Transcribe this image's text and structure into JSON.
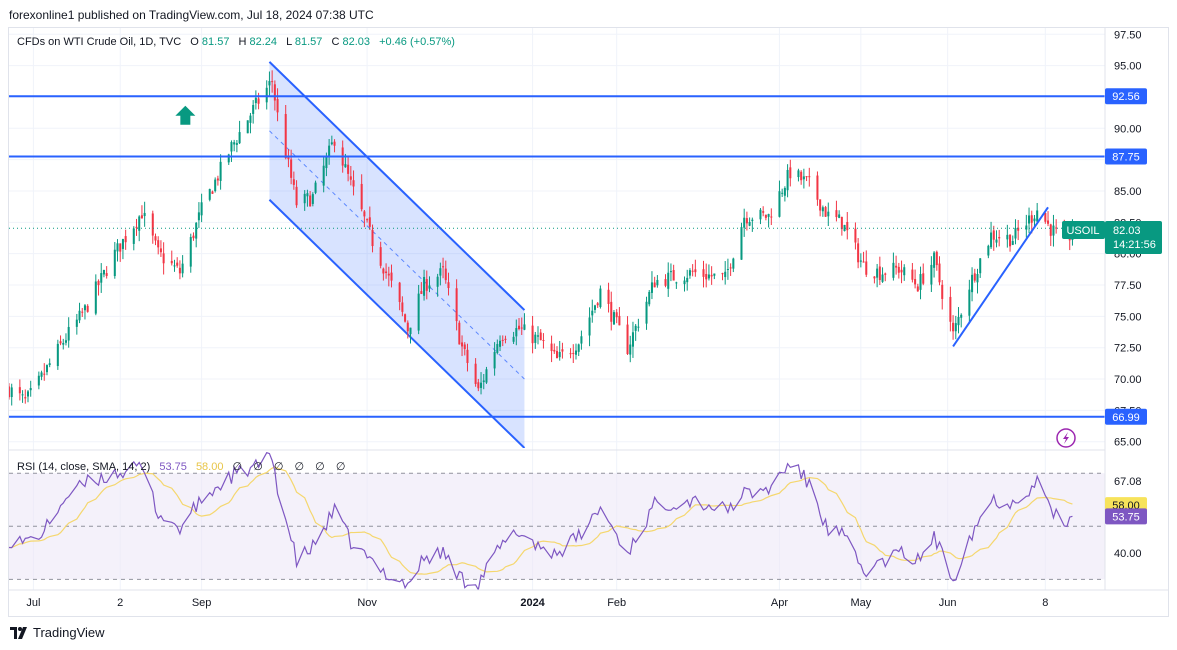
{
  "header": {
    "published": "forexonline1 published on TradingView.com, Jul 18, 2024 07:38 UTC"
  },
  "legend": {
    "symbol": "CFDs on WTI Crude Oil, 1D, TVC",
    "o_label": "O",
    "o_value": "81.57",
    "h_label": "H",
    "h_value": "82.24",
    "l_label": "L",
    "l_value": "81.57",
    "c_label": "C",
    "c_value": "82.03",
    "change": "+0.46 (+0.57%)"
  },
  "price_badge": {
    "symbol": "USOIL",
    "price": "82.03",
    "countdown": "14:21:56"
  },
  "rsi_legend": {
    "label": "RSI (14, close, SMA, 14, 2)",
    "value": "53.75",
    "sma_value": "58.00",
    "na_symbols": [
      "∅",
      "∅",
      "∅",
      "∅",
      "∅",
      "∅"
    ]
  },
  "footer": {
    "brand": "TradingView"
  },
  "colors": {
    "up": "#089981",
    "down": "#f23645",
    "line": "#2962ff",
    "rsi": "#7e57c2",
    "rsi_sma": "#f5d76e",
    "rsi_band": "#ede7f6",
    "badge_sma": "#f7e35b",
    "axis_text": "#131722"
  },
  "chart_data": {
    "type": "candlestick",
    "title": "CFDs on WTI Crude Oil, 1D, TVC",
    "ylim": [
      64.5,
      98.0
    ],
    "y_ticks": [
      "65.00",
      "67.50",
      "70.00",
      "72.50",
      "75.00",
      "77.50",
      "80.00",
      "82.50",
      "85.00",
      "87.50",
      "90.00",
      "92.50",
      "95.00",
      "97.50"
    ],
    "x_ticks": [
      {
        "label": "Jul",
        "date": "2023-07-01"
      },
      {
        "label": "2",
        "date": "2023-08-02"
      },
      {
        "label": "Sep",
        "date": "2023-09-01"
      },
      {
        "label": "Nov",
        "date": "2023-11-01"
      },
      {
        "label": "2024",
        "date": "2024-01-01",
        "bold": true
      },
      {
        "label": "Feb",
        "date": "2024-02-01"
      },
      {
        "label": "Apr",
        "date": "2024-04-01"
      },
      {
        "label": "May",
        "date": "2024-05-01"
      },
      {
        "label": "Jun",
        "date": "2024-06-02"
      },
      {
        "label": "8",
        "date": "2024-07-08"
      }
    ],
    "x_range": [
      "2023-06-22",
      "2024-07-30"
    ],
    "last_bar": "2024-07-18",
    "last_price": 82.03,
    "price_path": [
      [
        "2023-06-22",
        69.2
      ],
      [
        "2023-06-28",
        68.2
      ],
      [
        "2023-07-01",
        69.0
      ],
      [
        "2023-07-12",
        73.0
      ],
      [
        "2023-07-20",
        75.5
      ],
      [
        "2023-07-31",
        80.0
      ],
      [
        "2023-08-10",
        83.3
      ],
      [
        "2023-08-16",
        80.0
      ],
      [
        "2023-08-24",
        78.5
      ],
      [
        "2023-09-01",
        83.5
      ],
      [
        "2023-09-12",
        88.5
      ],
      [
        "2023-09-20",
        91.5
      ],
      [
        "2023-09-27",
        93.8
      ],
      [
        "2023-09-29",
        91.0
      ],
      [
        "2023-10-06",
        84.0
      ],
      [
        "2023-10-12",
        84.5
      ],
      [
        "2023-10-20",
        89.2
      ],
      [
        "2023-10-26",
        85.5
      ],
      [
        "2023-11-03",
        81.0
      ],
      [
        "2023-11-10",
        77.5
      ],
      [
        "2023-11-16",
        74.0
      ],
      [
        "2023-11-22",
        77.5
      ],
      [
        "2023-11-29",
        78.5
      ],
      [
        "2023-12-06",
        72.5
      ],
      [
        "2023-12-12",
        69.0
      ],
      [
        "2023-12-20",
        73.5
      ],
      [
        "2023-12-27",
        74.0
      ],
      [
        "2024-01-04",
        73.0
      ],
      [
        "2024-01-10",
        71.5
      ],
      [
        "2024-01-18",
        73.0
      ],
      [
        "2024-01-26",
        77.0
      ],
      [
        "2024-02-05",
        72.5
      ],
      [
        "2024-02-15",
        77.8
      ],
      [
        "2024-02-29",
        78.5
      ],
      [
        "2024-03-12",
        78.0
      ],
      [
        "2024-03-19",
        83.0
      ],
      [
        "2024-03-28",
        83.0
      ],
      [
        "2024-04-05",
        86.5
      ],
      [
        "2024-04-12",
        85.5
      ],
      [
        "2024-04-19",
        83.0
      ],
      [
        "2024-04-24",
        82.5
      ],
      [
        "2024-05-02",
        79.0
      ],
      [
        "2024-05-08",
        78.5
      ],
      [
        "2024-05-15",
        78.8
      ],
      [
        "2024-05-22",
        77.5
      ],
      [
        "2024-05-28",
        79.5
      ],
      [
        "2024-06-04",
        73.5
      ],
      [
        "2024-06-10",
        77.5
      ],
      [
        "2024-06-18",
        81.5
      ],
      [
        "2024-06-26",
        81.2
      ],
      [
        "2024-07-05",
        83.5
      ],
      [
        "2024-07-10",
        82.0
      ],
      [
        "2024-07-16",
        80.8
      ],
      [
        "2024-07-18",
        82.03
      ]
    ],
    "horizontal_levels": [
      {
        "price": 92.56,
        "label": "92.56"
      },
      {
        "price": 87.75,
        "label": "87.75"
      },
      {
        "price": 66.99,
        "label": "66.99"
      }
    ],
    "channel": {
      "upper": [
        [
          "2023-09-26",
          95.3
        ],
        [
          "2023-12-29",
          75.5
        ]
      ],
      "lower": [
        [
          "2023-09-26",
          84.3
        ],
        [
          "2023-12-29",
          64.5
        ]
      ],
      "midline": [
        [
          "2023-09-26",
          89.8
        ],
        [
          "2023-12-29",
          70.0
        ]
      ]
    },
    "trendline": [
      [
        "2024-06-04",
        72.6
      ],
      [
        "2024-07-09",
        83.7
      ]
    ],
    "annotations": [
      {
        "type": "up-arrow",
        "date": "2023-08-26",
        "price": 91.0
      }
    ],
    "rsi": {
      "ylim": [
        26.0,
        78.0
      ],
      "y_ticks": [
        "40.00",
        "57.09",
        "67.08"
      ],
      "bands": [
        70,
        50,
        30
      ],
      "last_value": 53.75,
      "sma_last": 58.0,
      "path": [
        [
          "2023-06-22",
          45.0
        ],
        [
          "2023-06-28",
          44.0
        ],
        [
          "2023-07-05",
          48.0
        ],
        [
          "2023-07-12",
          60.0
        ],
        [
          "2023-07-20",
          66.0
        ],
        [
          "2023-07-31",
          70.0
        ],
        [
          "2023-08-10",
          72.0
        ],
        [
          "2023-08-16",
          55.0
        ],
        [
          "2023-08-24",
          49.0
        ],
        [
          "2023-09-01",
          60.0
        ],
        [
          "2023-09-12",
          69.0
        ],
        [
          "2023-09-20",
          72.0
        ],
        [
          "2023-09-27",
          76.0
        ],
        [
          "2023-09-29",
          65.0
        ],
        [
          "2023-10-06",
          37.0
        ],
        [
          "2023-10-12",
          42.0
        ],
        [
          "2023-10-20",
          56.0
        ],
        [
          "2023-10-26",
          44.0
        ],
        [
          "2023-11-03",
          36.0
        ],
        [
          "2023-11-10",
          31.0
        ],
        [
          "2023-11-16",
          28.0
        ],
        [
          "2023-11-22",
          38.0
        ],
        [
          "2023-11-29",
          40.0
        ],
        [
          "2023-12-06",
          30.0
        ],
        [
          "2023-12-12",
          29.0
        ],
        [
          "2023-12-20",
          42.0
        ],
        [
          "2023-12-27",
          48.0
        ],
        [
          "2024-01-04",
          42.0
        ],
        [
          "2024-01-10",
          40.0
        ],
        [
          "2024-01-18",
          46.0
        ],
        [
          "2024-01-26",
          57.0
        ],
        [
          "2024-02-05",
          40.0
        ],
        [
          "2024-02-15",
          58.0
        ],
        [
          "2024-02-29",
          60.0
        ],
        [
          "2024-03-12",
          56.0
        ],
        [
          "2024-03-19",
          62.0
        ],
        [
          "2024-03-28",
          64.0
        ],
        [
          "2024-04-05",
          74.0
        ],
        [
          "2024-04-12",
          66.0
        ],
        [
          "2024-04-19",
          48.0
        ],
        [
          "2024-04-24",
          47.0
        ],
        [
          "2024-05-02",
          33.0
        ],
        [
          "2024-05-08",
          36.0
        ],
        [
          "2024-05-15",
          40.0
        ],
        [
          "2024-05-22",
          37.0
        ],
        [
          "2024-05-28",
          46.0
        ],
        [
          "2024-06-04",
          30.0
        ],
        [
          "2024-06-10",
          46.0
        ],
        [
          "2024-06-18",
          60.0
        ],
        [
          "2024-06-26",
          59.0
        ],
        [
          "2024-07-05",
          67.0
        ],
        [
          "2024-07-10",
          57.0
        ],
        [
          "2024-07-16",
          48.0
        ],
        [
          "2024-07-18",
          53.75
        ]
      ]
    }
  }
}
